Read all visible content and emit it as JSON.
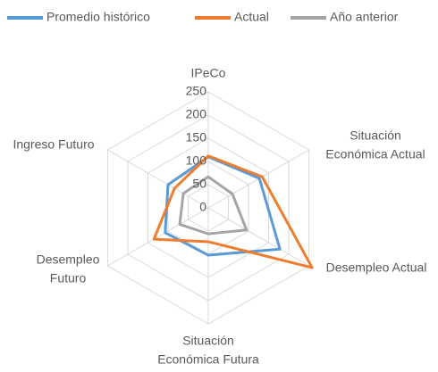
{
  "chart_data": {
    "type": "radar",
    "categories": [
      "IPeCo",
      "Situación\nEconómica Actual",
      "Desempleo Actual",
      "Situación\nEconómica Futura",
      "Desempleo\nFuturo",
      "Ingreso Futuro"
    ],
    "series": [
      {
        "name": "Promedio histórico",
        "color": "#5b9bd5",
        "values": [
          110,
          127,
          178,
          102,
          107,
          100
        ]
      },
      {
        "name": "Actual",
        "color": "#ed7d31",
        "values": [
          112,
          134,
          258,
          73,
          135,
          84
        ]
      },
      {
        "name": "Año anterior",
        "color": "#a5a5a5",
        "values": [
          67,
          60,
          95,
          56,
          71,
          62
        ]
      }
    ],
    "rlim": [
      0,
      250
    ],
    "rticks": [
      0,
      50,
      100,
      150,
      200,
      250
    ],
    "grid": true,
    "legend": "top"
  }
}
